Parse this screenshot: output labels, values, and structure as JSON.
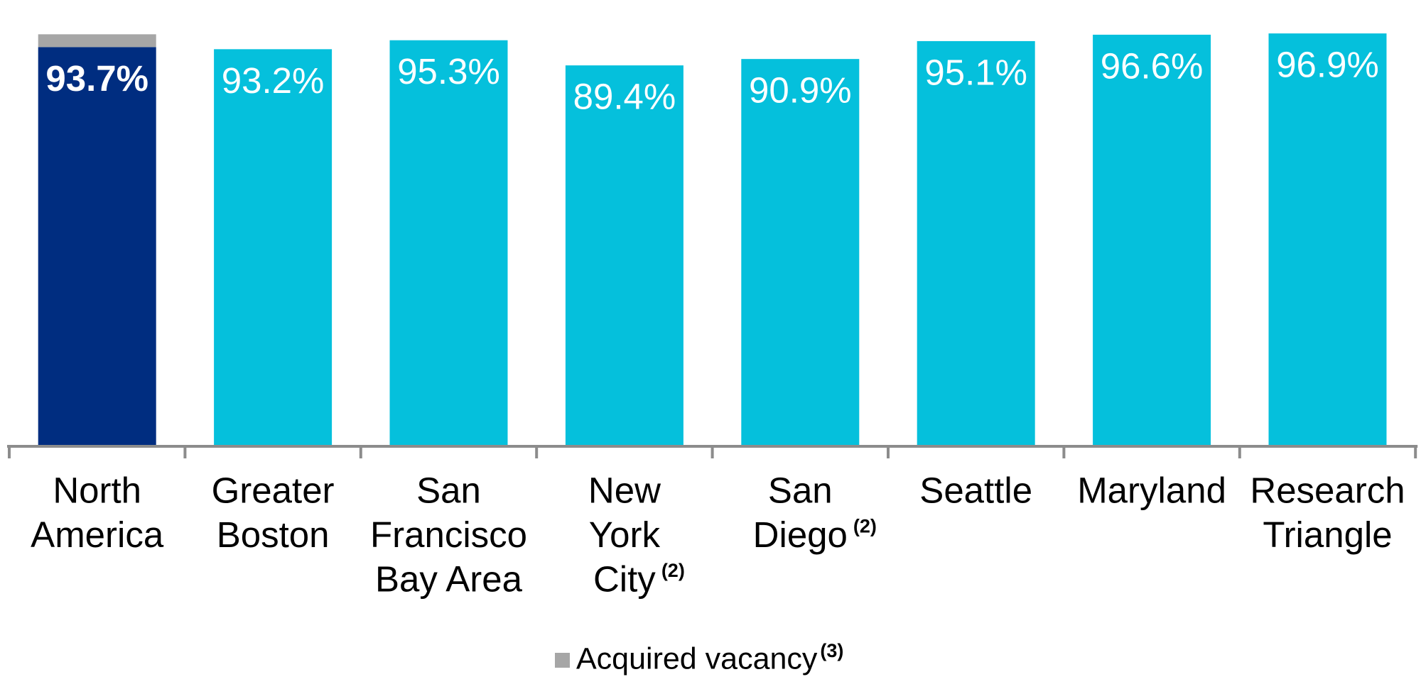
{
  "chart_data": {
    "type": "bar",
    "categories": [
      [
        "North",
        "America"
      ],
      [
        "Greater",
        "Boston"
      ],
      [
        "San",
        "Francisco",
        "Bay Area"
      ],
      [
        "New",
        "York",
        "City"
      ],
      [
        "San",
        "Diego"
      ],
      [
        "Seattle"
      ],
      [
        "Maryland"
      ],
      [
        "Research",
        "Triangle"
      ]
    ],
    "category_notes": [
      null,
      null,
      null,
      "(2)",
      "(2)",
      null,
      null,
      null
    ],
    "series": [
      {
        "values": [
          93.7,
          93.2,
          95.3,
          89.4,
          90.9,
          95.1,
          96.6,
          96.9
        ],
        "value_labels": [
          "93.7%",
          "93.2%",
          "95.3%",
          "89.4%",
          "90.9%",
          "95.1%",
          "96.6%",
          "96.9%"
        ],
        "colors": [
          "#002d80",
          "#05c0dc",
          "#05c0dc",
          "#05c0dc",
          "#05c0dc",
          "#05c0dc",
          "#05c0dc",
          "#05c0dc"
        ]
      },
      {
        "name": "Acquired vacancy",
        "name_note": "(3)",
        "color": "#a6a6a6",
        "values": [
          3,
          null,
          null,
          null,
          null,
          null,
          null,
          null
        ]
      }
    ],
    "ylim": [
      0,
      100
    ]
  }
}
